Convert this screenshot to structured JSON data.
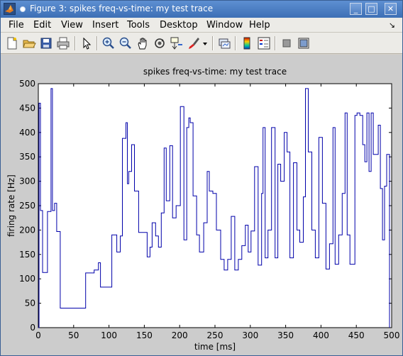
{
  "window": {
    "title": "Figure 3: spikes freq-vs-time: my test trace",
    "minimize_glyph": "_",
    "maximize_glyph": "□",
    "close_glyph": "✕"
  },
  "menu": {
    "items": [
      "File",
      "Edit",
      "View",
      "Insert",
      "Tools",
      "Desktop",
      "Window",
      "Help"
    ],
    "dock_glyph": "↘"
  },
  "toolbar": {
    "icons": [
      "new-figure-icon",
      "open-file-icon",
      "save-icon",
      "print-icon",
      "pointer-icon",
      "zoom-in-icon",
      "zoom-out-icon",
      "pan-hand-icon",
      "rotate-3d-icon",
      "data-cursor-icon",
      "brush-icon",
      "brush-dropdown-icon",
      "link-plot-icon",
      "colorbar-icon",
      "legend-icon",
      "hide-plot-tools-icon",
      "show-plot-tools-icon"
    ]
  },
  "chart_data": {
    "type": "line",
    "style": "stairs",
    "title": "spikes freq-vs-time: my test trace",
    "xlabel": "time [ms]",
    "ylabel": "firing rate [Hz]",
    "xlim": [
      0,
      500
    ],
    "ylim": [
      0,
      500
    ],
    "xticks": [
      0,
      50,
      100,
      150,
      200,
      250,
      300,
      350,
      400,
      450,
      500
    ],
    "yticks": [
      0,
      50,
      100,
      150,
      200,
      250,
      300,
      350,
      400,
      450,
      500
    ],
    "line_color": "#0000aa",
    "grid": false,
    "series": [
      {
        "x": [
          0,
          1,
          3,
          6,
          9,
          13,
          18,
          20,
          23,
          26,
          28,
          31,
          33,
          36,
          38,
          41,
          46,
          56,
          67,
          77,
          79,
          85,
          88,
          99,
          104,
          111,
          116,
          119,
          122,
          124,
          126,
          128,
          132,
          136,
          142,
          148,
          154,
          158,
          161,
          166,
          170,
          174,
          178,
          181,
          186,
          190,
          195,
          201,
          206,
          210,
          213,
          215,
          219,
          224,
          228,
          234,
          239,
          242,
          247,
          252,
          258,
          263,
          268,
          273,
          278,
          283,
          288,
          293,
          297,
          301,
          306,
          311,
          316,
          318,
          321,
          325,
          330,
          335,
          339,
          343,
          348,
          352,
          356,
          361,
          366,
          370,
          375,
          378,
          382,
          387,
          392,
          397,
          402,
          407,
          412,
          417,
          420,
          425,
          430,
          434,
          437,
          441,
          444,
          448,
          451,
          455,
          459,
          462,
          465,
          468,
          471,
          474,
          478,
          481,
          484,
          487,
          490,
          493,
          497
        ],
        "y": [
          0,
          460,
          240,
          113,
          113,
          238,
          490,
          240,
          255,
          197,
          197,
          40,
          40,
          40,
          40,
          40,
          40,
          40,
          112,
          112,
          118,
          133,
          83,
          83,
          190,
          155,
          188,
          388,
          388,
          420,
          295,
          320,
          375,
          280,
          195,
          195,
          145,
          165,
          215,
          188,
          165,
          235,
          368,
          260,
          373,
          225,
          250,
          453,
          180,
          410,
          430,
          420,
          270,
          190,
          155,
          215,
          320,
          280,
          275,
          200,
          140,
          118,
          140,
          228,
          118,
          140,
          168,
          210,
          155,
          198,
          330,
          128,
          275,
          410,
          143,
          200,
          410,
          143,
          335,
          300,
          400,
          360,
          143,
          338,
          200,
          175,
          268,
          490,
          360,
          200,
          143,
          390,
          255,
          120,
          172,
          410,
          130,
          190,
          275,
          440,
          190,
          130,
          130,
          435,
          440,
          435,
          375,
          340,
          440,
          320,
          440,
          355,
          355,
          415,
          285,
          180,
          290,
          355,
          0
        ]
      }
    ]
  }
}
